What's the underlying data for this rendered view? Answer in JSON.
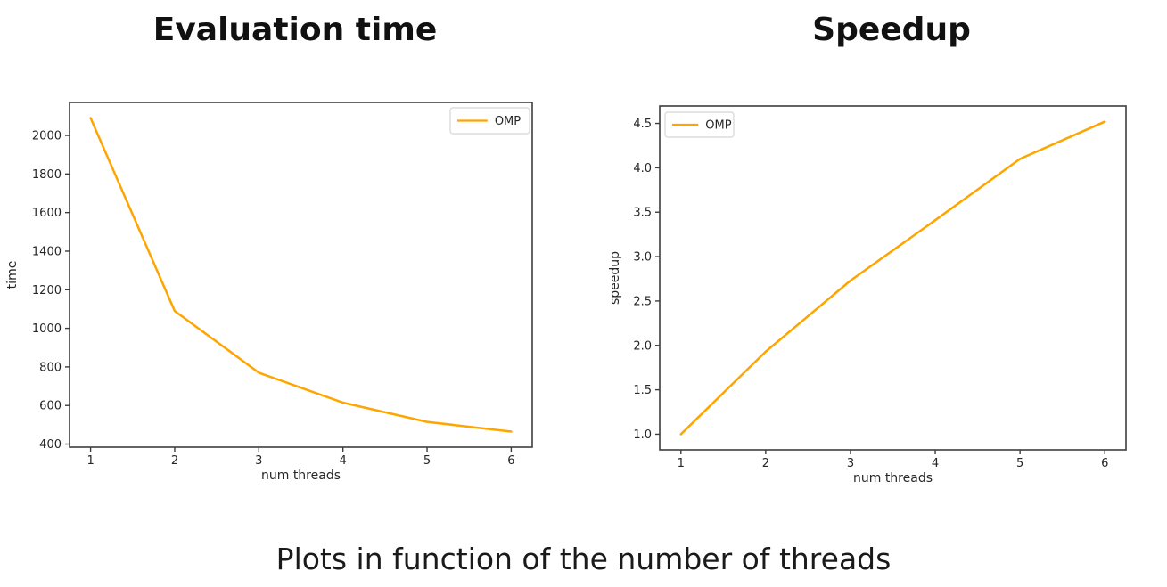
{
  "page": {
    "background": "#ffffff",
    "caption": "Plots in function of the number of threads"
  },
  "chart_data": [
    {
      "type": "line",
      "title": "Evaluation time",
      "xlabel": "num threads",
      "ylabel": "time",
      "x": [
        1,
        2,
        3,
        4,
        5,
        6
      ],
      "series": [
        {
          "name": "OMP",
          "color": "#FFA500",
          "values": [
            2090,
            1090,
            770,
            615,
            515,
            465
          ]
        }
      ],
      "xtick_labels": [
        "1",
        "2",
        "3",
        "4",
        "5",
        "6"
      ],
      "ytick_labels": [
        "400",
        "600",
        "800",
        "1000",
        "1200",
        "1400",
        "1600",
        "1800",
        "2000"
      ],
      "xlim": [
        0.75,
        6.25
      ],
      "ylim": [
        384,
        2171
      ],
      "grid": false,
      "legend": {
        "label": "OMP",
        "position": "upper-right"
      }
    },
    {
      "type": "line",
      "title": "Speedup",
      "xlabel": "num threads",
      "ylabel": "speedup",
      "x": [
        1,
        2,
        3,
        4,
        5,
        6
      ],
      "series": [
        {
          "name": "OMP",
          "color": "#FFA500",
          "values": [
            1.0,
            1.93,
            2.73,
            3.41,
            4.1,
            4.52
          ]
        }
      ],
      "xtick_labels": [
        "1",
        "2",
        "3",
        "4",
        "5",
        "6"
      ],
      "ytick_labels": [
        "1.0",
        "1.5",
        "2.0",
        "2.5",
        "3.0",
        "3.5",
        "4.0",
        "4.5"
      ],
      "xlim": [
        0.75,
        6.25
      ],
      "ylim": [
        0.824,
        4.696
      ],
      "grid": false,
      "legend": {
        "label": "OMP",
        "position": "upper-left"
      }
    }
  ],
  "colors": {
    "series_orange": "#FFA500",
    "axis_frame": "#3d3d3d",
    "tick_label": "#262626",
    "legend_border": "#d5d5d5",
    "legend_bg": "#ffffff"
  }
}
